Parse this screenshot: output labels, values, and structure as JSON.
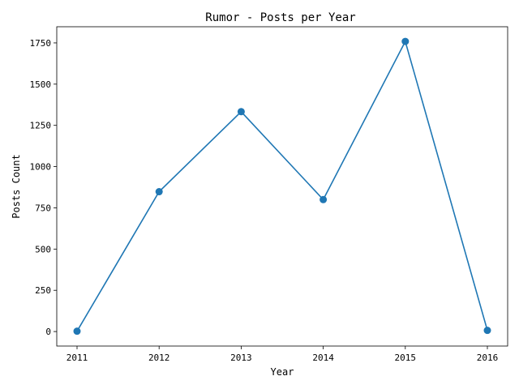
{
  "chart_data": {
    "type": "line",
    "title": "Rumor - Posts per Year",
    "xlabel": "Year",
    "ylabel": "Posts Count",
    "x": [
      "2011",
      "2012",
      "2013",
      "2014",
      "2015",
      "2016"
    ],
    "series": [
      {
        "values": [
          2,
          848,
          1333,
          800,
          1759,
          7
        ],
        "color": "#1f77b4",
        "marker": "circle"
      }
    ],
    "ylim": [
      -88,
      1848
    ],
    "yticks": [
      0,
      250,
      500,
      750,
      1000,
      1250,
      1500,
      1750
    ],
    "grid": false,
    "legend": "none"
  }
}
